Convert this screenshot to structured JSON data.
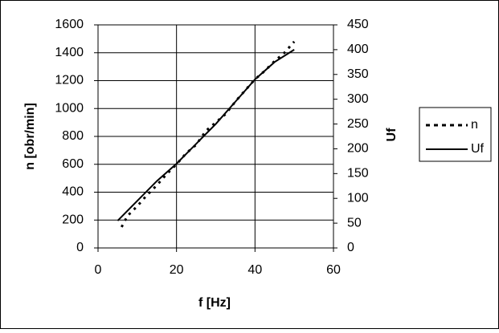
{
  "chart_data": {
    "type": "line",
    "x_label": "f [Hz]",
    "y_label": "n [obr/min]",
    "y2_label": "Uf",
    "xlim": [
      0,
      60
    ],
    "xticks": [
      0,
      20,
      40,
      60
    ],
    "ylim": [
      0,
      1600
    ],
    "yticks": [
      0,
      200,
      400,
      600,
      800,
      1000,
      1200,
      1400,
      1600
    ],
    "y2lim": [
      0,
      450
    ],
    "y2ticks": [
      0,
      50,
      100,
      150,
      200,
      250,
      300,
      350,
      400,
      450
    ],
    "grid": true,
    "legend": "right",
    "series": [
      {
        "name": "n",
        "color": "#000000",
        "line_style": "dashed",
        "x": [
          6,
          7.5,
          10,
          12.5,
          15,
          17.5,
          20,
          22.5,
          25,
          27.5,
          30,
          32.5,
          35,
          37.5,
          40,
          42.5,
          45,
          47.5,
          50
        ],
        "values": [
          150,
          230,
          300,
          380,
          450,
          530,
          600,
          680,
          740,
          840,
          900,
          960,
          1050,
          1130,
          1210,
          1270,
          1340,
          1400,
          1480
        ]
      },
      {
        "name": "Uf",
        "color": "#000000",
        "line_style": "solid",
        "axis": "y2",
        "x": [
          5,
          10,
          15,
          20,
          25,
          30,
          35,
          40,
          45,
          50
        ],
        "values": [
          55,
          95,
          135,
          170,
          210,
          250,
          295,
          340,
          375,
          400
        ]
      }
    ]
  }
}
